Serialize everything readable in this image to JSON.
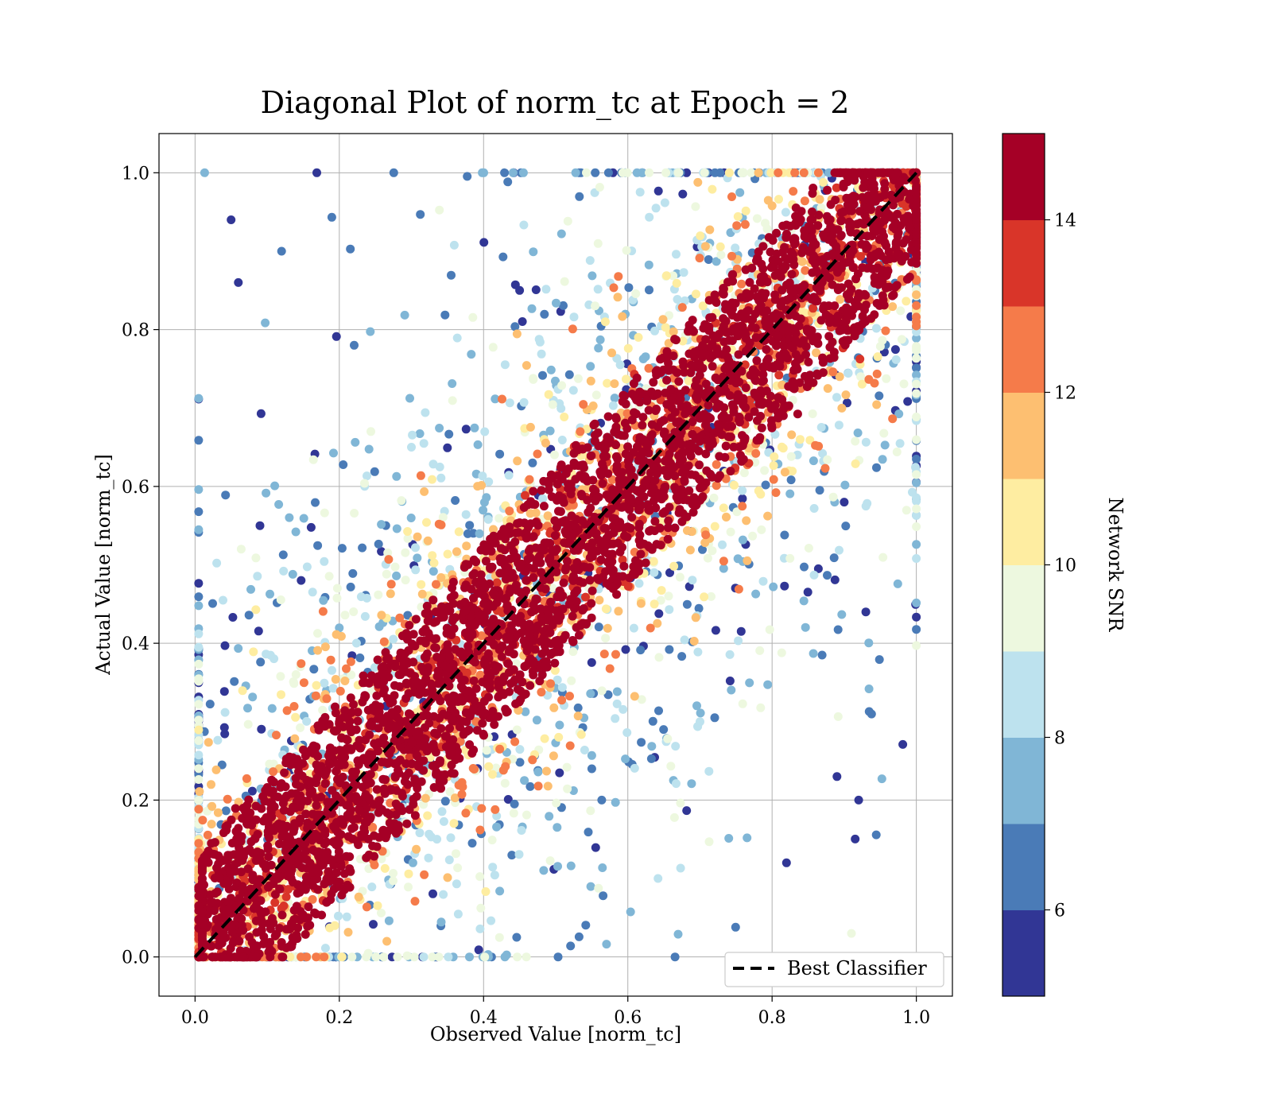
{
  "chart_data": {
    "type": "scatter",
    "title": "Diagonal Plot of norm_tc at Epoch = 2",
    "xlabel": "Observed Value [norm_tc]",
    "ylabel": "Actual Value [norm_tc]",
    "xlim": [
      -0.05,
      1.05
    ],
    "ylim": [
      -0.05,
      1.05
    ],
    "xticks": [
      0.0,
      0.2,
      0.4,
      0.6,
      0.8,
      1.0
    ],
    "yticks": [
      0.0,
      0.2,
      0.4,
      0.6,
      0.8,
      1.0
    ],
    "xtick_labels": [
      "0.0",
      "0.2",
      "0.4",
      "0.6",
      "0.8",
      "1.0"
    ],
    "ytick_labels": [
      "0.0",
      "0.2",
      "0.4",
      "0.6",
      "0.8",
      "1.0"
    ],
    "grid": true,
    "reference_line": {
      "label": "Best Classifier",
      "x": [
        0.0,
        1.0
      ],
      "y": [
        0.0,
        1.0
      ],
      "style": "dashed",
      "color": "#000000"
    },
    "legend_position": "lower-right",
    "colorbar": {
      "label": "Network SNR",
      "range": [
        5,
        15
      ],
      "ticks": [
        6,
        8,
        10,
        12,
        14
      ],
      "tick_labels": [
        "6",
        "8",
        "10",
        "12",
        "14"
      ],
      "bins": [
        {
          "from": 5,
          "to": 6,
          "color": "#313695"
        },
        {
          "from": 6,
          "to": 7,
          "color": "#4a7bb7"
        },
        {
          "from": 7,
          "to": 8,
          "color": "#80b6d6"
        },
        {
          "from": 8,
          "to": 9,
          "color": "#bde2ee"
        },
        {
          "from": 9,
          "to": 10,
          "color": "#edf8df"
        },
        {
          "from": 10,
          "to": 11,
          "color": "#feeda1"
        },
        {
          "from": 11,
          "to": 12,
          "color": "#fdbf71"
        },
        {
          "from": 12,
          "to": 13,
          "color": "#f57b4a"
        },
        {
          "from": 13,
          "to": 14,
          "color": "#d93529"
        },
        {
          "from": 14,
          "to": 15,
          "color": "#a50026"
        }
      ]
    },
    "scatter_model": {
      "description": "approximate point cloud; high-SNR points cluster tightly on the diagonal, low-SNR points spread widely",
      "x_range": [
        0.0,
        1.0
      ],
      "y_range": [
        0.0,
        1.0
      ],
      "high_snr_band_halfwidth": 0.09,
      "low_snr_spread": 0.45,
      "sample_points": [
        {
          "x": 0.05,
          "y": 0.94,
          "snr": 5.5
        },
        {
          "x": 0.06,
          "y": 0.86,
          "snr": 5.5
        },
        {
          "x": 0.09,
          "y": 0.55,
          "snr": 5.5
        },
        {
          "x": 0.12,
          "y": 0.9,
          "snr": 6.5
        },
        {
          "x": 0.3,
          "y": 0.65,
          "snr": 8.5
        },
        {
          "x": 0.45,
          "y": 0.85,
          "snr": 5.5
        },
        {
          "x": 0.55,
          "y": 0.24,
          "snr": 6.5
        },
        {
          "x": 0.7,
          "y": 0.3,
          "snr": 8.5
        },
        {
          "x": 0.82,
          "y": 0.12,
          "snr": 5.5
        },
        {
          "x": 0.89,
          "y": 0.23,
          "snr": 5.5
        },
        {
          "x": 0.9,
          "y": 0.58,
          "snr": 5.5
        },
        {
          "x": 0.91,
          "y": 0.03,
          "snr": 9.5
        },
        {
          "x": 0.92,
          "y": 0.2,
          "snr": 5.5
        },
        {
          "x": 0.93,
          "y": 0.44,
          "snr": 5.5
        },
        {
          "x": 0.5,
          "y": 0.5,
          "snr": 14.5
        },
        {
          "x": 0.8,
          "y": 0.8,
          "snr": 14.5
        },
        {
          "x": 0.2,
          "y": 0.2,
          "snr": 14.5
        }
      ]
    }
  }
}
